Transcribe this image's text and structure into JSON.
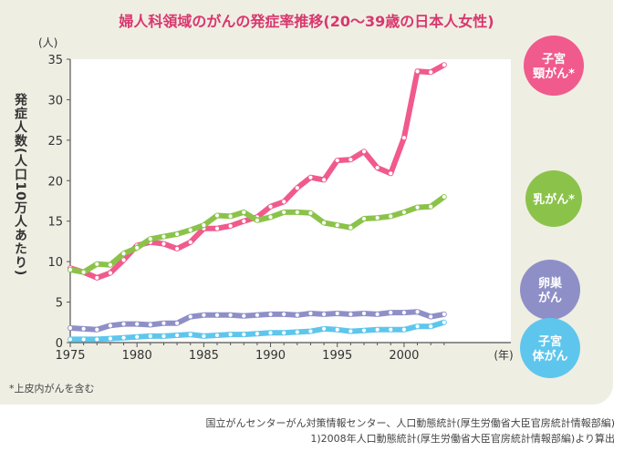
{
  "title": "婦人科領域のがんの発症率推移(20〜39歳の日本人女性)",
  "footnote": "*上皮内がんを含む",
  "source_lines": [
    "国立がんセンターがん対策情報センター、人口動態統計(厚生労働省大臣官房統計情報部編)",
    "1)2008年人口動態統計(厚生労働省大臣官房統計情報部編)より算出"
  ],
  "colors": {
    "panel": "#efeee3",
    "title": "#d9366f",
    "cervical": "#f05a8c",
    "breast": "#8bc34a",
    "ovarian": "#8f8fc8",
    "uterine": "#5ec6ec"
  },
  "chart_data": {
    "type": "line",
    "title": "婦人科領域のがんの発症率推移(20〜39歳の日本人女性)",
    "ylabel": "発症人数(人口10万人あたり)",
    "y_unit_label": "(人)",
    "x_unit_label": "(年)",
    "ylim": [
      0,
      35
    ],
    "xlim": [
      1975,
      2008
    ],
    "yticks": [
      0,
      5,
      10,
      15,
      20,
      25,
      30,
      35
    ],
    "xticks": [
      1975,
      1980,
      1985,
      1990,
      1995,
      2000
    ],
    "grid": false,
    "x": [
      1975,
      1976,
      1977,
      1978,
      1979,
      1980,
      1981,
      1982,
      1983,
      1984,
      1985,
      1986,
      1987,
      1988,
      1989,
      1990,
      1991,
      1992,
      1993,
      1994,
      1995,
      1996,
      1997,
      1998,
      1999,
      2000,
      2001,
      2002,
      2003
    ],
    "series": [
      {
        "name": "子宮頸がん*",
        "color": "#f05a8c",
        "values": [
          9.2,
          8.7,
          8.0,
          8.6,
          10.2,
          12.0,
          12.4,
          12.2,
          11.6,
          12.4,
          14.1,
          14.1,
          14.4,
          15.0,
          15.5,
          16.8,
          17.4,
          19.1,
          20.4,
          20.1,
          22.5,
          22.6,
          23.6,
          21.6,
          20.9,
          25.3,
          33.5,
          33.4,
          34.3
        ]
      },
      {
        "name": "乳がん*",
        "color": "#8bc34a",
        "values": [
          9.0,
          8.7,
          9.7,
          9.6,
          11.0,
          11.7,
          12.8,
          13.1,
          13.4,
          13.9,
          14.5,
          15.7,
          15.6,
          16.1,
          15.1,
          15.5,
          16.1,
          16.1,
          16.0,
          14.8,
          14.5,
          14.2,
          15.3,
          15.4,
          15.6,
          16.1,
          16.7,
          16.8,
          18.0
        ]
      },
      {
        "name": "卵巣がん",
        "color": "#8f8fc8",
        "values": [
          1.8,
          1.7,
          1.6,
          2.1,
          2.3,
          2.3,
          2.2,
          2.4,
          2.4,
          3.2,
          3.4,
          3.4,
          3.4,
          3.3,
          3.4,
          3.5,
          3.5,
          3.4,
          3.6,
          3.5,
          3.6,
          3.5,
          3.6,
          3.5,
          3.7,
          3.7,
          3.8,
          3.2,
          3.5
        ]
      },
      {
        "name": "子宮体がん",
        "color": "#5ec6ec",
        "values": [
          0.4,
          0.4,
          0.4,
          0.5,
          0.6,
          0.7,
          0.8,
          0.8,
          0.9,
          1.0,
          0.8,
          0.9,
          1.0,
          1.0,
          1.1,
          1.2,
          1.2,
          1.3,
          1.4,
          1.7,
          1.6,
          1.4,
          1.5,
          1.6,
          1.6,
          1.6,
          2.0,
          2.0,
          2.5
        ]
      }
    ],
    "legend_labels": [
      {
        "series": "子宮頸がん*",
        "lines": [
          "子宮",
          "頸がん*"
        ],
        "color": "#f05a8c"
      },
      {
        "series": "乳がん*",
        "lines": [
          "乳がん*"
        ],
        "color": "#8bc34a"
      },
      {
        "series": "卵巣がん",
        "lines": [
          "卵巣",
          "がん"
        ],
        "color": "#8f8fc8"
      },
      {
        "series": "子宮体がん",
        "lines": [
          "子宮",
          "体がん"
        ],
        "color": "#5ec6ec"
      }
    ]
  }
}
